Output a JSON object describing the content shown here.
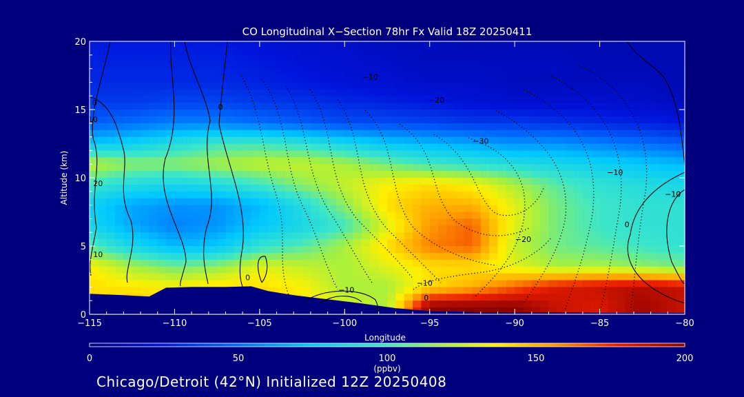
{
  "chart_data": {
    "type": "heatmap",
    "title": "CO Longitudinal X−Section 78hr  Fx Valid 18Z 20250411",
    "xlabel": "Longitude",
    "ylabel": "Altitude (km)",
    "xlim": [
      -115,
      -80
    ],
    "ylim": [
      0,
      20
    ],
    "x_ticks": [
      -115,
      -110,
      -105,
      -100,
      -95,
      -90,
      -85,
      -80
    ],
    "x_tick_labels": [
      "−115",
      "−110",
      "−105",
      "−100",
      "−95",
      "−90",
      "−85",
      "−80"
    ],
    "y_ticks": [
      0,
      5,
      10,
      15,
      20
    ],
    "y_tick_labels": [
      "0",
      "5",
      "10",
      "15",
      "20"
    ],
    "x": [
      -115,
      -112.5,
      -110,
      -107.5,
      -105,
      -102.5,
      -100,
      -97.5,
      -95,
      -92.5,
      -90,
      -87.5,
      -85,
      -82.5,
      -80
    ],
    "y": [
      0.5,
      2,
      3.5,
      5,
      6.5,
      8,
      9.5,
      11,
      12.5,
      14,
      15.5,
      17,
      18.5,
      20
    ],
    "z": [
      [
        140,
        145,
        145,
        145,
        145,
        140,
        130,
        120,
        200,
        200,
        200,
        185,
        180,
        195,
        185
      ],
      [
        140,
        138,
        135,
        140,
        140,
        135,
        120,
        120,
        140,
        150,
        165,
        180,
        185,
        190,
        185
      ],
      [
        135,
        120,
        110,
        115,
        130,
        125,
        120,
        130,
        140,
        140,
        130,
        120,
        120,
        115,
        110
      ],
      [
        105,
        85,
        70,
        75,
        95,
        105,
        120,
        140,
        160,
        165,
        125,
        110,
        105,
        100,
        95
      ],
      [
        85,
        65,
        55,
        60,
        75,
        85,
        100,
        130,
        155,
        165,
        130,
        110,
        100,
        95,
        95
      ],
      [
        80,
        65,
        60,
        60,
        70,
        90,
        115,
        140,
        150,
        150,
        130,
        110,
        100,
        95,
        95
      ],
      [
        100,
        90,
        85,
        90,
        100,
        115,
        125,
        135,
        140,
        135,
        120,
        105,
        95,
        90,
        85
      ],
      [
        125,
        115,
        115,
        120,
        125,
        125,
        120,
        110,
        100,
        95,
        90,
        85,
        80,
        75,
        70
      ],
      [
        75,
        80,
        90,
        100,
        100,
        95,
        85,
        75,
        70,
        65,
        60,
        60,
        55,
        50,
        45
      ],
      [
        45,
        50,
        55,
        55,
        50,
        45,
        40,
        40,
        38,
        35,
        35,
        33,
        30,
        28,
        25
      ],
      [
        35,
        35,
        38,
        38,
        35,
        33,
        30,
        28,
        25,
        22,
        20,
        20,
        20,
        18,
        15
      ],
      [
        30,
        30,
        30,
        30,
        28,
        25,
        22,
        20,
        18,
        18,
        15,
        15,
        15,
        15,
        12
      ],
      [
        28,
        28,
        28,
        28,
        25,
        22,
        20,
        18,
        15,
        15,
        15,
        15,
        12,
        12,
        12
      ],
      [
        25,
        25,
        25,
        25,
        22,
        20,
        18,
        15,
        15,
        12,
        12,
        12,
        12,
        12,
        12
      ]
    ],
    "contour_labels": [
      {
        "text": "−10",
        "x": -98.5,
        "y": 17.2
      },
      {
        "text": "−20",
        "x": -94.6,
        "y": 15.5
      },
      {
        "text": "−30",
        "x": -92,
        "y": 12.5
      },
      {
        "text": "−20",
        "x": -89.5,
        "y": 5.3
      },
      {
        "text": "−10",
        "x": -95.3,
        "y": 2.1
      },
      {
        "text": "−10",
        "x": -99.9,
        "y": 1.6
      },
      {
        "text": "−10",
        "x": -84.1,
        "y": 10.2
      },
      {
        "text": "−10",
        "x": -80.7,
        "y": 8.6
      },
      {
        "text": "0",
        "x": -114.7,
        "y": 15.3
      },
      {
        "text": "0",
        "x": -107.3,
        "y": 15
      },
      {
        "text": "0",
        "x": -105.7,
        "y": 2.5
      },
      {
        "text": "0",
        "x": -95.2,
        "y": 1.0
      },
      {
        "text": "0",
        "x": -83.4,
        "y": 6.4
      },
      {
        "text": "10",
        "x": -114.5,
        "y": 4.2
      },
      {
        "text": "20",
        "x": -114.5,
        "y": 9.4
      },
      {
        "text": "10",
        "x": -114.8,
        "y": 14.1
      }
    ],
    "colorbar": {
      "min": 0,
      "max": 200,
      "ticks": [
        0,
        50,
        100,
        150,
        200
      ],
      "tick_labels": [
        "0",
        "50",
        "100",
        "150",
        "200"
      ],
      "unit": "(ppbv)"
    }
  },
  "footer": {
    "location": "Chicago/Detroit (42°N) Initialized 12Z 20250408"
  }
}
